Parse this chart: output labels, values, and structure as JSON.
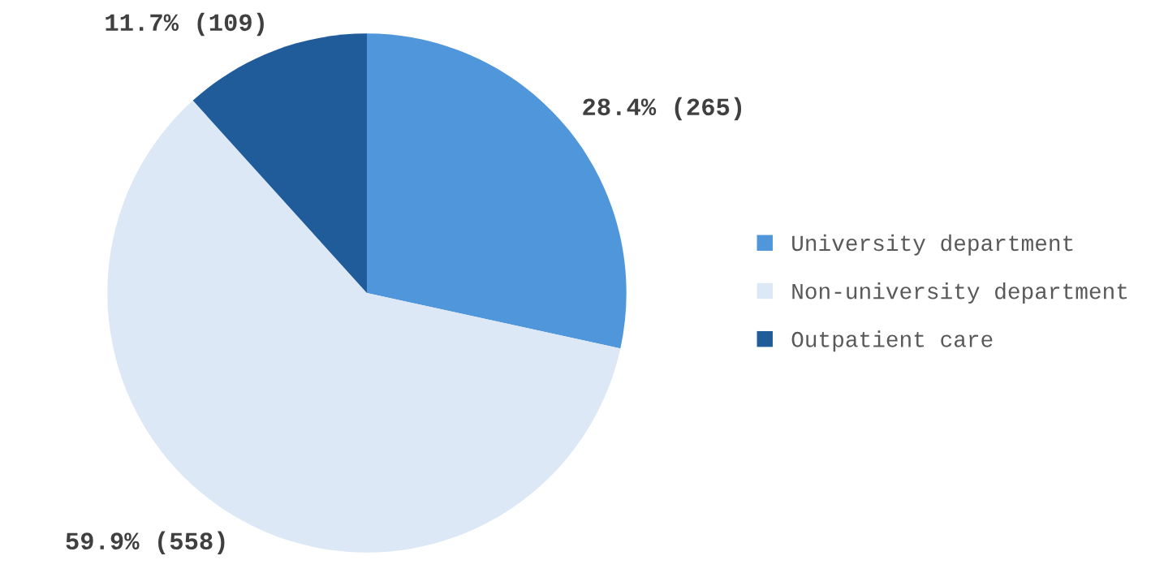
{
  "chart_data": {
    "type": "pie",
    "categories": [
      "University department",
      "Non-university department",
      "Outpatient care"
    ],
    "values": [
      265,
      558,
      109
    ],
    "colors": [
      "#4f96db",
      "#dce8f6",
      "#1f5c99"
    ],
    "value_labels": [
      "28.4% (265)",
      "59.9% (558)",
      "11.7% (109)"
    ],
    "legend": "right"
  }
}
